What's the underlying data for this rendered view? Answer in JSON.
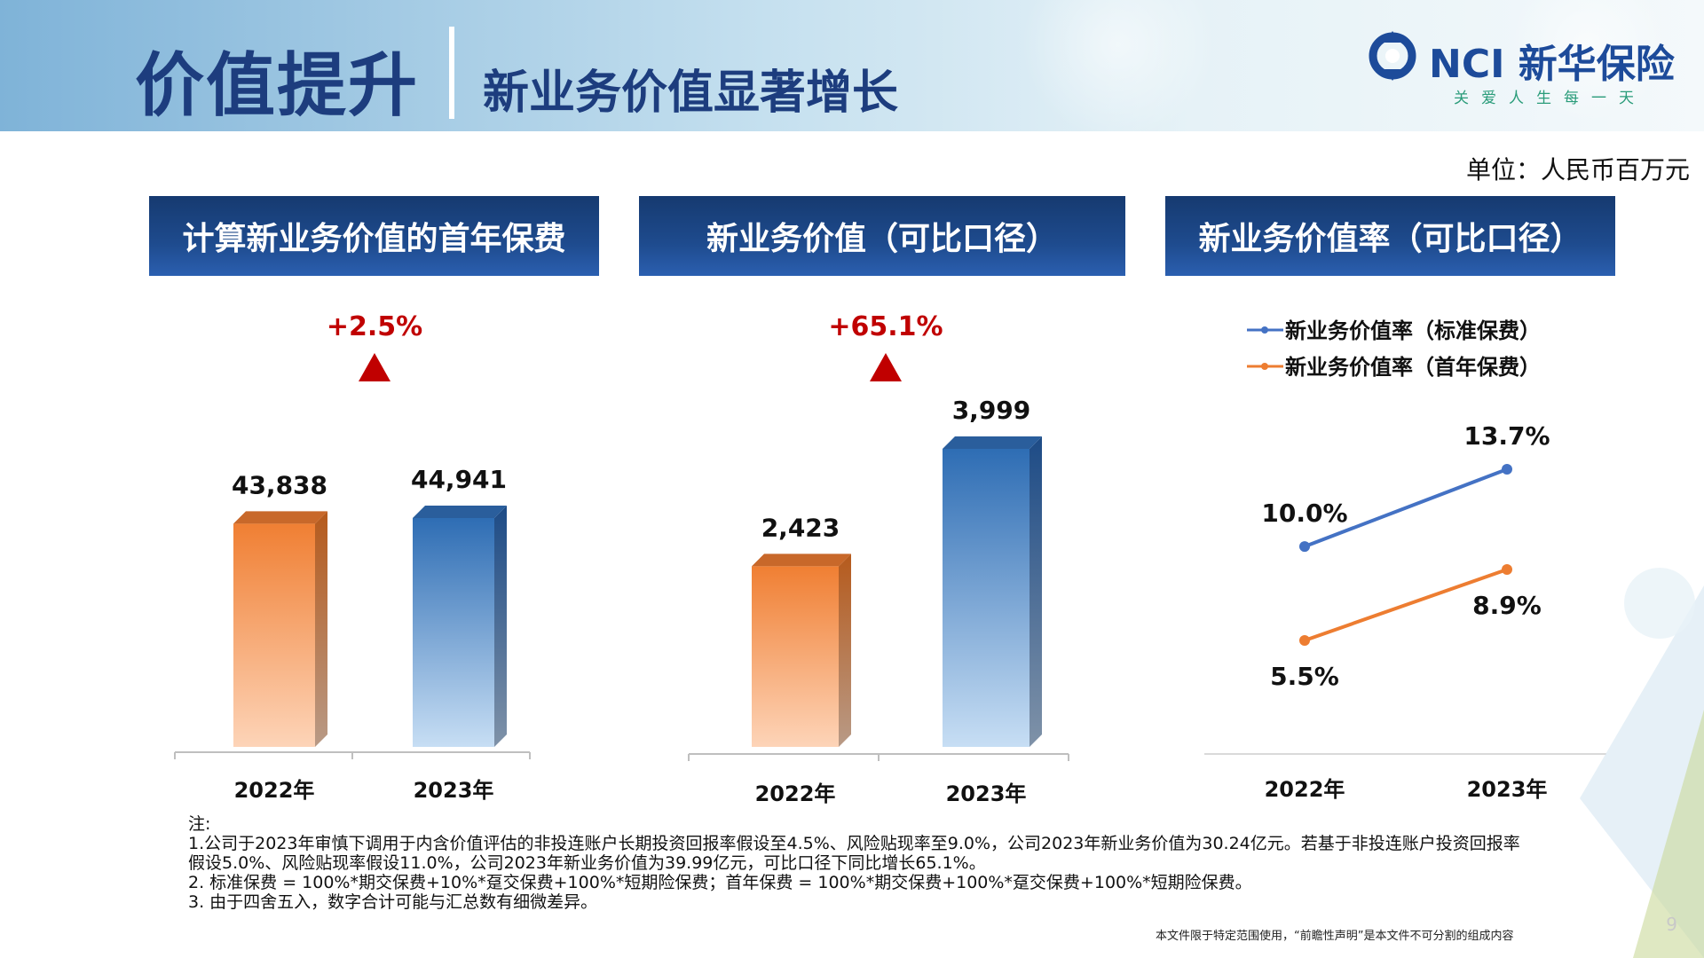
{
  "header": {
    "title": "价值提升",
    "subtitle": "新业务价值显著增长"
  },
  "logo": {
    "brand": "NCI 新华保险",
    "slogan": "关爱人生每一天"
  },
  "unit": "单位：人民币百万元",
  "colors": {
    "header_blue": "#1d3d7e",
    "panel_blue": "#1e4b8e",
    "bar_orange": "#f07f33",
    "bar_blue": "#2e6db4",
    "line_blue": "#4472c4",
    "line_orange": "#ed7d31",
    "growth_red": "#c00000"
  },
  "chart_data": [
    {
      "type": "bar",
      "title": "计算新业务价值的首年保费",
      "categories": [
        "2022年",
        "2023年"
      ],
      "values": [
        43838,
        44941
      ],
      "value_labels": [
        "43,838",
        "44,941"
      ],
      "growth_label": "+2.5%",
      "growth_icon": "up-triangle-icon"
    },
    {
      "type": "bar",
      "title": "新业务价值（可比口径）",
      "categories": [
        "2022年",
        "2023年"
      ],
      "values": [
        2423,
        3999
      ],
      "value_labels": [
        "2,423",
        "3,999"
      ],
      "growth_label": "+65.1%",
      "growth_icon": "up-triangle-icon"
    },
    {
      "type": "line",
      "title": "新业务价值率（可比口径）",
      "categories": [
        "2022年",
        "2023年"
      ],
      "series": [
        {
          "name": "新业务价值率（标准保费）",
          "values": [
            10.0,
            13.7
          ],
          "labels": [
            "10.0%",
            "13.7%"
          ]
        },
        {
          "name": "新业务价值率（首年保费）",
          "values": [
            5.5,
            8.9
          ],
          "labels": [
            "5.5%",
            "8.9%"
          ]
        }
      ],
      "legend_position": "top"
    }
  ],
  "notes": {
    "heading": "注:",
    "lines": [
      "1.公司于2023年审慎下调用于内含价值评估的非投连账户长期投资回报率假设至4.5%、风险贴现率至9.0%，公司2023年新业务价值为30.24亿元。若基于非投连账户投资回报率",
      "假设5.0%、风险贴现率假设11.0%，公司2023年新业务价值为39.99亿元，可比口径下同比增长65.1%。",
      "2. 标准保费 = 100%*期交保费+10%*趸交保费+100%*短期险保费；首年保费 = 100%*期交保费+100%*趸交保费+100%*短期险保费。",
      "3. 由于四舍五入，数字合计可能与汇总数有细微差异。"
    ]
  },
  "footer": {
    "disclaimer": "本文件限于特定范围使用，“前瞻性声明”是本文件不可分割的组成内容",
    "page_number": "9"
  }
}
